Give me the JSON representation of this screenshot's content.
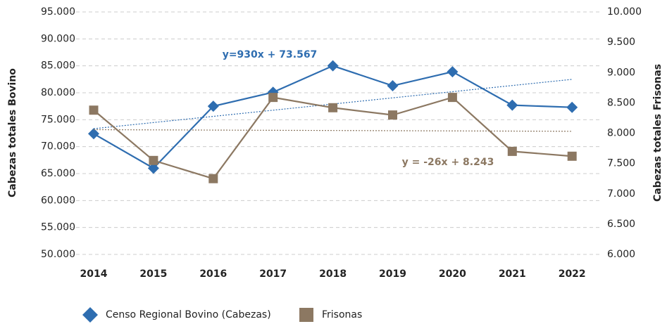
{
  "chart_data": {
    "type": "line",
    "categories": [
      "2014",
      "2015",
      "2016",
      "2017",
      "2018",
      "2019",
      "2020",
      "2021",
      "2022"
    ],
    "y_label": "Cabezas totales Bovino",
    "y2_label": "Cabezas totales Frisonas",
    "ylim": [
      50000,
      95000
    ],
    "yticks": [
      {
        "value": 50000,
        "label": "50.000"
      },
      {
        "value": 55000,
        "label": "55.000"
      },
      {
        "value": 60000,
        "label": "60.000"
      },
      {
        "value": 65000,
        "label": "65.000"
      },
      {
        "value": 70000,
        "label": "70.000"
      },
      {
        "value": 75000,
        "label": "75.000"
      },
      {
        "value": 80000,
        "label": "80.000"
      },
      {
        "value": 85000,
        "label": "85.000"
      },
      {
        "value": 90000,
        "label": "90.000"
      },
      {
        "value": 95000,
        "label": "95.000"
      }
    ],
    "y2lim": [
      6000,
      10000
    ],
    "y2ticks": [
      {
        "value": 6000,
        "label": "6.000"
      },
      {
        "value": 6500,
        "label": "6.500"
      },
      {
        "value": 7000,
        "label": "7.000"
      },
      {
        "value": 7500,
        "label": "7.500"
      },
      {
        "value": 8000,
        "label": "8.000"
      },
      {
        "value": 8500,
        "label": "8.500"
      },
      {
        "value": 9000,
        "label": "9.000"
      },
      {
        "value": 9500,
        "label": "9.500"
      },
      {
        "value": 10000,
        "label": "10.000"
      }
    ],
    "grid": true,
    "legend": "bottom",
    "series": [
      {
        "name": "Censo Regional Bovino (Cabezas)",
        "color": "#2e6db0",
        "marker": "diamond",
        "axis": "y",
        "values": [
          72400,
          66000,
          77500,
          80100,
          85000,
          81300,
          83900,
          77700,
          77300
        ],
        "trend_label": "y=930x + 73.567"
      },
      {
        "name": "Frisonas",
        "color": "#8c7862",
        "marker": "square",
        "axis": "y2",
        "values": [
          8380,
          7550,
          7250,
          8590,
          8420,
          8300,
          8590,
          7700,
          7620
        ],
        "trend_label": "y = -26x + 8.243"
      }
    ]
  }
}
